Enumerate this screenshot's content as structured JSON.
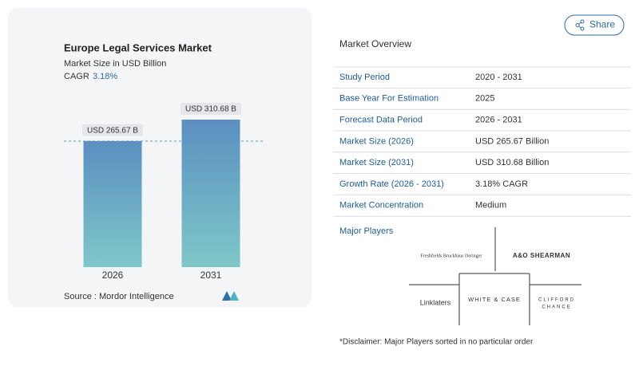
{
  "chart_data": {
    "type": "bar",
    "title": "Europe Legal Services Market",
    "subtitle": "Market Size in USD Billion",
    "cagr_label": "CAGR",
    "cagr": "3.18%",
    "categories": [
      "2026",
      "2031"
    ],
    "values": [
      265.67,
      310.68
    ],
    "value_labels": [
      "USD 265.67 B",
      "USD 310.68 B"
    ],
    "gradient": [
      "#5b8fc0",
      "#7ec7c9"
    ],
    "source": "Source : Mordor Intelligence"
  },
  "share": "Share",
  "overview": {
    "title": "Market Overview",
    "rows": [
      [
        "Study Period",
        "2020 - 2031"
      ],
      [
        "Base Year For Estimation",
        "2025"
      ],
      [
        "Forecast Data Period",
        "2026 - 2031"
      ],
      [
        "Market Size (2026)",
        "USD 265.67 Billion"
      ],
      [
        "Market Size (2031)",
        "USD 310.68 Billion"
      ],
      [
        "Growth Rate (2026 - 2031)",
        "3.18% CAGR"
      ],
      [
        "Market Concentration",
        "Medium"
      ]
    ]
  },
  "major_players": {
    "title": "Major Players",
    "logos": [
      "Freshfields Bruckhaus Deringer",
      "A&O SHEARMAN",
      "Linklaters",
      "WHITE & CASE",
      [
        "CLIFFORD",
        "CHANCE"
      ]
    ]
  },
  "disclaimer": "*Disclaimer: Major Players sorted in no particular order"
}
